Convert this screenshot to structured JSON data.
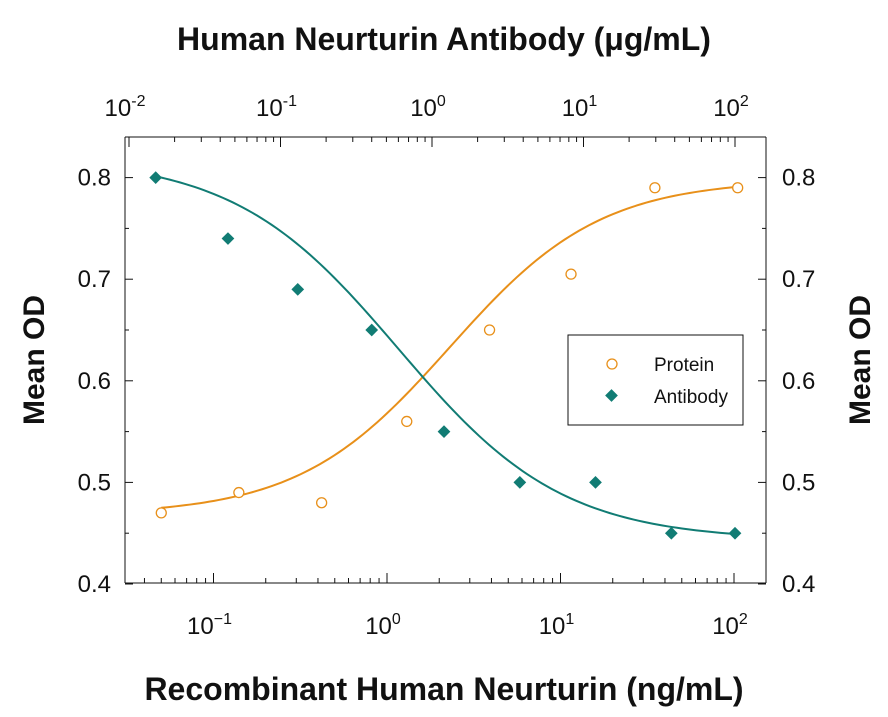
{
  "chart_data": {
    "type": "scatter",
    "title_top": "Human Neurturin Antibody (μg/mL)",
    "xlabel": "Recombinant Human Neurturin (ng/mL)",
    "ylabel_left": "Mean OD",
    "ylabel_right": "Mean OD",
    "x_scale": "log",
    "xlim": [
      0.03,
      150
    ],
    "x_top_scale": "log",
    "x_top_lim": [
      0.007,
      150
    ],
    "ylim": [
      0.4,
      0.83
    ],
    "y_ticks": [
      "0.4",
      "0.5",
      "0.6",
      "0.7",
      "0.8"
    ],
    "x_bottom_ticks": [
      {
        "base": "10",
        "exp": "−1",
        "value": 0.1
      },
      {
        "base": "10",
        "exp": "0",
        "value": 1
      },
      {
        "base": "10",
        "exp": "1",
        "value": 10
      },
      {
        "base": "10",
        "exp": "2",
        "value": 100
      }
    ],
    "x_top_ticks": [
      {
        "base": "10",
        "exp": "-2",
        "value": 0.01
      },
      {
        "base": "10",
        "exp": "-1",
        "value": 0.1
      },
      {
        "base": "10",
        "exp": "0",
        "value": 1
      },
      {
        "base": "10",
        "exp": "1",
        "value": 10
      },
      {
        "base": "10",
        "exp": "2",
        "value": 100
      }
    ],
    "legend_position": "right",
    "series": [
      {
        "name": "Protein",
        "axis": "bottom",
        "marker": "open-circle",
        "color": "#E8901A",
        "x": [
          0.05,
          0.14,
          0.42,
          1.3,
          3.9,
          11.5,
          35,
          105
        ],
        "y": [
          0.47,
          0.49,
          0.48,
          0.56,
          0.65,
          0.705,
          0.79,
          0.79
        ],
        "fit": {
          "bottom": 0.468,
          "top": 0.798,
          "ec50": 2.3,
          "hill": 1.0
        }
      },
      {
        "name": "Antibody",
        "axis": "top",
        "marker": "filled-diamond",
        "color": "#117C74",
        "x": [
          0.015,
          0.045,
          0.13,
          0.4,
          1.2,
          3.8,
          12,
          38,
          100
        ],
        "y": [
          0.8,
          0.74,
          0.69,
          0.65,
          0.55,
          0.5,
          0.5,
          0.45,
          0.45
        ],
        "fit": {
          "bottom": 0.443,
          "top": 0.82,
          "ec50": 0.6,
          "hill": -0.8
        }
      }
    ]
  }
}
